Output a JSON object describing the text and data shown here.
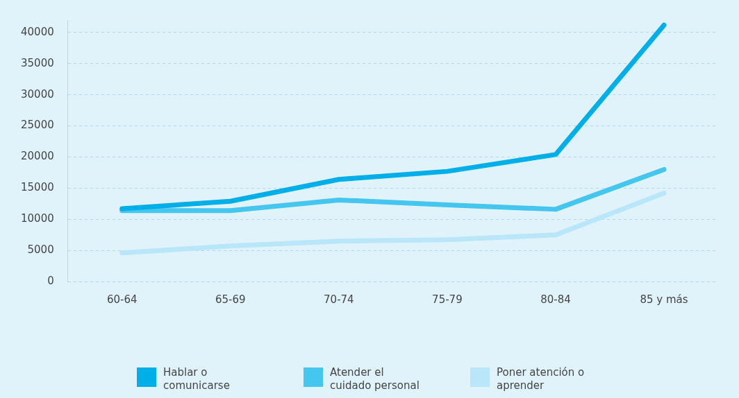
{
  "chart_data": {
    "type": "line",
    "categories": [
      "60-64",
      "65-69",
      "70-74",
      "75-79",
      "80-84",
      "85 y más"
    ],
    "series": [
      {
        "name": "Hablar o comunicarse",
        "color": "#00aee8",
        "values": [
          11700,
          12900,
          16400,
          17700,
          20400,
          41200
        ]
      },
      {
        "name": "Atender el cuidado personal",
        "color": "#45c6ef",
        "values": [
          11400,
          11400,
          13100,
          12300,
          11600,
          18000
        ]
      },
      {
        "name": "Poner atención o aprender",
        "color": "#b9e6f8",
        "values": [
          4600,
          5700,
          6500,
          6700,
          7500,
          14200
        ]
      }
    ],
    "ylim": [
      0,
      42000
    ],
    "yticks": [
      0,
      5000,
      10000,
      15000,
      20000,
      25000,
      30000,
      35000,
      40000
    ],
    "grid": "y",
    "legend": "bottom",
    "marker": "none",
    "line_style": "solid"
  }
}
